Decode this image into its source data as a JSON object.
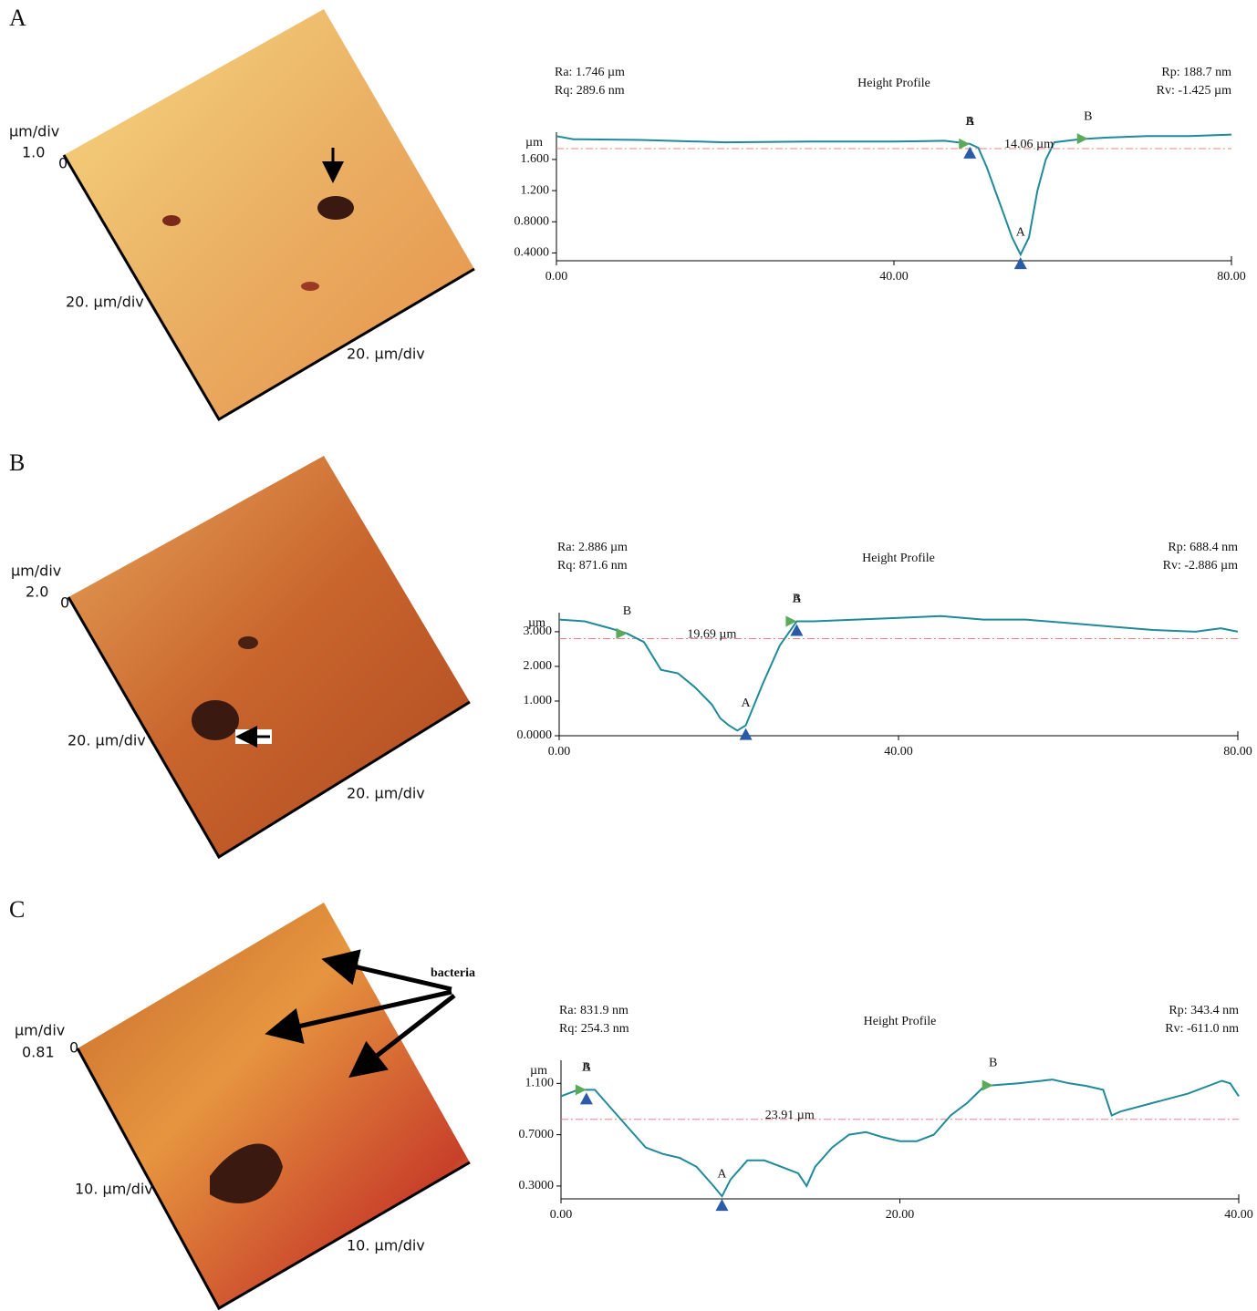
{
  "panels": [
    {
      "label": "A",
      "image_labels": {
        "z_unit": "µm/div",
        "z_scale": "1.0",
        "origin": "0",
        "y_scale": "20. µm/div",
        "x_scale": "20. µm/div"
      }
    },
    {
      "label": "B",
      "image_labels": {
        "z_unit": "µm/div",
        "z_scale": "2.0",
        "origin": "0",
        "y_scale": "20. µm/div",
        "x_scale": "20. µm/div"
      }
    },
    {
      "label": "C",
      "image_labels": {
        "z_unit": "µm/div",
        "z_scale": "0.81",
        "origin": "0",
        "y_scale": "10. µm/div",
        "x_scale": "10. µm/div"
      },
      "callout": "bacteria"
    }
  ],
  "chart_data": [
    {
      "type": "line",
      "title": "Height Profile",
      "y_label": "µm",
      "stats_left": [
        "Ra: 1.746 µm",
        "Rq: 289.6 nm"
      ],
      "stats_right": [
        "Rp: 188.7 nm",
        "Rv: -1.425 µm"
      ],
      "measurement": "14.06 µm",
      "x": [
        0,
        2,
        10,
        20,
        30,
        40,
        46,
        49,
        50,
        51,
        52,
        53,
        54,
        55,
        56,
        57,
        58,
        59,
        62,
        65,
        70,
        75,
        80
      ],
      "series": [
        {
          "color": "#1f8a9a",
          "values": [
            1.9,
            1.86,
            1.85,
            1.82,
            1.83,
            1.83,
            1.84,
            1.8,
            1.75,
            1.5,
            1.2,
            0.9,
            0.6,
            0.38,
            0.6,
            1.2,
            1.6,
            1.82,
            1.86,
            1.88,
            1.9,
            1.9,
            1.92
          ]
        }
      ],
      "reference_level": 1.74,
      "reference_color": "#e88080",
      "cursors": [
        {
          "label": "B",
          "x": 49
        },
        {
          "label": "A",
          "x": 49
        },
        {
          "label": "A",
          "x": 55
        },
        {
          "label": "B",
          "x": 63
        }
      ],
      "xlim": [
        0,
        80
      ],
      "xticks": [
        {
          "value": 0,
          "label": "0.00"
        },
        {
          "value": 40,
          "label": "40.00"
        },
        {
          "value": 80,
          "label": "80.00"
        }
      ],
      "ylim": [
        0.3,
        1.95
      ],
      "yticks": [
        {
          "value": 0.4,
          "label": "0.4000"
        },
        {
          "value": 0.8,
          "label": "0.8000"
        },
        {
          "value": 1.2,
          "label": "1.200"
        },
        {
          "value": 1.6,
          "label": "1.600"
        }
      ]
    },
    {
      "type": "line",
      "title": "Height Profile",
      "y_label": "µm",
      "stats_left": [
        "Ra: 2.886 µm",
        "Rq: 871.6 nm"
      ],
      "stats_right": [
        "Rp: 688.4 nm",
        "Rv: -2.886 µm"
      ],
      "measurement": "19.69 µm",
      "x": [
        0,
        3,
        6,
        8,
        10,
        12,
        14,
        16,
        18,
        19,
        20,
        21,
        22,
        24,
        26,
        28,
        30,
        35,
        40,
        45,
        50,
        55,
        60,
        65,
        70,
        75,
        78,
        80
      ],
      "series": [
        {
          "color": "#1f8a9a",
          "values": [
            3.35,
            3.3,
            3.1,
            2.95,
            2.7,
            1.9,
            1.8,
            1.4,
            0.9,
            0.5,
            0.3,
            0.15,
            0.3,
            1.5,
            2.6,
            3.3,
            3.3,
            3.35,
            3.4,
            3.45,
            3.35,
            3.35,
            3.25,
            3.15,
            3.05,
            3.0,
            3.1,
            3.0
          ]
        }
      ],
      "reference_level": 2.8,
      "reference_color": "#e88080",
      "cursors": [
        {
          "label": "B",
          "x": 8
        },
        {
          "label": "A",
          "x": 22
        },
        {
          "label": "B",
          "x": 28
        },
        {
          "label": "A",
          "x": 28
        }
      ],
      "xlim": [
        0,
        80
      ],
      "xticks": [
        {
          "value": 0,
          "label": "0.00"
        },
        {
          "value": 40,
          "label": "40.00"
        },
        {
          "value": 80,
          "label": "80.00"
        }
      ],
      "ylim": [
        0,
        3.55
      ],
      "yticks": [
        {
          "value": 0,
          "label": "0.0000"
        },
        {
          "value": 1,
          "label": "1.000"
        },
        {
          "value": 2,
          "label": "2.000"
        },
        {
          "value": 3,
          "label": "3.000"
        }
      ]
    },
    {
      "type": "line",
      "title": "Height Profile",
      "y_label": "µm",
      "stats_left": [
        "Ra: 831.9 nm",
        "Rq: 254.3 nm"
      ],
      "stats_right": [
        "Rp: 343.4 nm",
        "Rv: -611.0 nm"
      ],
      "measurement": "23.91 µm",
      "x": [
        0,
        1,
        2,
        3,
        4,
        5,
        6,
        7,
        8,
        9,
        9.5,
        10,
        11,
        12,
        13,
        14,
        14.5,
        15,
        16,
        17,
        18,
        19,
        20,
        21,
        22,
        23,
        24,
        25,
        27,
        29,
        30,
        31,
        32,
        32.5,
        33,
        35,
        37,
        39,
        39.5,
        40
      ],
      "series": [
        {
          "color": "#1f8a9a",
          "values": [
            1.0,
            1.05,
            1.05,
            0.9,
            0.75,
            0.6,
            0.55,
            0.52,
            0.45,
            0.3,
            0.22,
            0.35,
            0.5,
            0.5,
            0.45,
            0.4,
            0.3,
            0.45,
            0.6,
            0.7,
            0.72,
            0.68,
            0.65,
            0.65,
            0.7,
            0.85,
            0.95,
            1.08,
            1.1,
            1.13,
            1.1,
            1.08,
            1.05,
            0.85,
            0.88,
            0.95,
            1.02,
            1.12,
            1.1,
            1.0
          ]
        }
      ],
      "reference_level": 0.82,
      "reference_color": "#e88080",
      "cursors": [
        {
          "label": "B",
          "x": 1.5
        },
        {
          "label": "A",
          "x": 1.5
        },
        {
          "label": "A",
          "x": 9.5
        },
        {
          "label": "B",
          "x": 25.5
        }
      ],
      "xlim": [
        0,
        40
      ],
      "xticks": [
        {
          "value": 0,
          "label": "0.00"
        },
        {
          "value": 20,
          "label": "20.00"
        },
        {
          "value": 40,
          "label": "40.00"
        }
      ],
      "ylim": [
        0.2,
        1.28
      ],
      "yticks": [
        {
          "value": 0.3,
          "label": "0.3000"
        },
        {
          "value": 0.7,
          "label": "0.7000"
        },
        {
          "value": 1.1,
          "label": "1.100"
        }
      ]
    }
  ]
}
